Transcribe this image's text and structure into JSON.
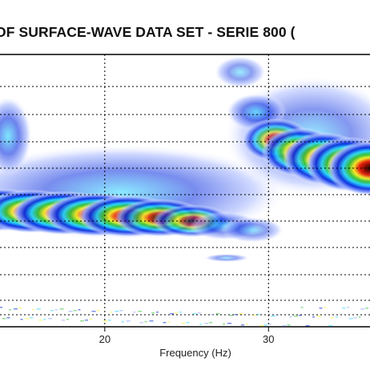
{
  "chart_data": {
    "type": "heatmap",
    "title": "OF SURFACE-WAVE DATA SET - SERIE 800 (",
    "xlabel": "Frequency (Hz)",
    "ylabel": "",
    "x_ticks": [
      20,
      30
    ],
    "xlim": [
      13.6,
      36.2
    ],
    "grid": true,
    "colormap": [
      "#ffffff",
      "#0a2fe0",
      "#2ad7ff",
      "#37c23a",
      "#f7ef2a",
      "#e81a0c",
      "#1a0000"
    ],
    "series": [
      {
        "name": "",
        "ridge": [
          {
            "x": 13.6,
            "value": 0.95
          },
          {
            "x": 15,
            "value": 0.98
          },
          {
            "x": 17,
            "value": 1.0
          },
          {
            "x": 20,
            "value": 0.97
          },
          {
            "x": 22,
            "value": 0.85
          },
          {
            "x": 24,
            "value": 0.55
          },
          {
            "x": 27,
            "value": 0.35
          },
          {
            "x": 29,
            "value": 0.2
          }
        ]
      },
      {
        "name": "",
        "ridge": [
          {
            "x": 29.5,
            "value": 0.2
          },
          {
            "x": 31,
            "value": 0.5
          },
          {
            "x": 33,
            "value": 0.8
          },
          {
            "x": 35,
            "value": 0.98
          },
          {
            "x": 36.2,
            "value": 1.0
          }
        ]
      }
    ]
  }
}
